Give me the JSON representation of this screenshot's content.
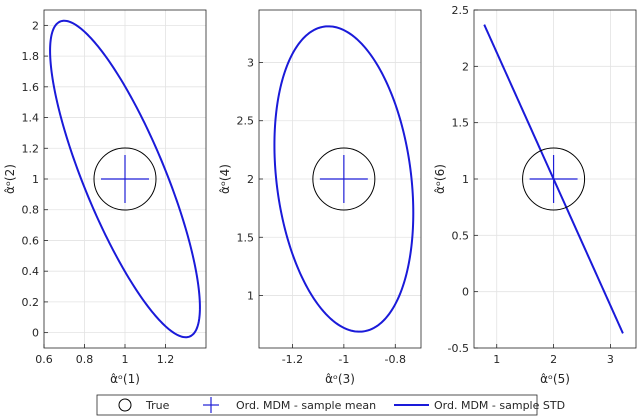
{
  "figure": {
    "colors": {
      "true_marker": "#000000",
      "mean_marker": "#1f1fd6",
      "std_ellipse": "#1a1ad9",
      "grid": "#e3e3e3",
      "axis": "#262626"
    }
  },
  "chart_data": [
    {
      "type": "scatter",
      "xlabel": "α̂ᵒ(1)",
      "ylabel": "α̂ᵒ(2)",
      "xlim": [
        0.6,
        1.4
      ],
      "ylim": [
        -0.1,
        2.1
      ],
      "xticks": [
        0.6,
        0.8,
        1,
        1.2
      ],
      "xtick_labels": [
        "0.6",
        "0.8",
        "1",
        "1.2"
      ],
      "yticks": [
        0,
        0.2,
        0.4,
        0.6,
        0.8,
        1,
        1.2,
        1.4,
        1.6,
        1.8,
        2
      ],
      "ytick_labels": [
        "0",
        "0.2",
        "0.4",
        "0.6",
        "0.8",
        "1",
        "1.2",
        "1.4",
        "1.6",
        "1.8",
        "2"
      ],
      "grid": true,
      "true_value": [
        1,
        1
      ],
      "sample_mean": [
        1,
        1
      ],
      "std_ellipse": {
        "center": [
          1,
          1
        ],
        "x_extent": [
          0.65,
          1.37
        ],
        "y_extent": [
          -0.03,
          2.03
        ],
        "top_point": [
          0.7,
          2.02
        ],
        "bottom_point": [
          1.3,
          -0.02
        ]
      }
    },
    {
      "type": "scatter",
      "xlabel": "α̂ᵒ(3)",
      "ylabel": "α̂ᵒ(4)",
      "xlim": [
        -1.33,
        -0.7
      ],
      "ylim": [
        0.55,
        3.45
      ],
      "xticks": [
        -1.2,
        -1,
        -0.8
      ],
      "xtick_labels": [
        "-1.2",
        "-1",
        "-0.8"
      ],
      "yticks": [
        1,
        1.5,
        2,
        2.5,
        3
      ],
      "ytick_labels": [
        "1",
        "1.5",
        "2",
        "2.5",
        "3"
      ],
      "grid": true,
      "true_value": [
        -1,
        2
      ],
      "sample_mean": [
        -1,
        2
      ],
      "std_ellipse": {
        "center": [
          -1,
          2
        ],
        "x_extent": [
          -1.27,
          -0.73
        ],
        "y_extent": [
          0.69,
          3.31
        ],
        "top_point": [
          -1.06,
          3.3
        ],
        "bottom_point": [
          -0.94,
          0.69
        ]
      }
    },
    {
      "type": "scatter",
      "xlabel": "α̂ᵒ(5)",
      "ylabel": "α̂ᵒ(6)",
      "xlim": [
        0.6,
        3.45
      ],
      "ylim": [
        -0.5,
        2.5
      ],
      "xticks": [
        1,
        2,
        3
      ],
      "xtick_labels": [
        "1",
        "2",
        "3"
      ],
      "yticks": [
        -0.5,
        0,
        0.5,
        1,
        1.5,
        2,
        2.5
      ],
      "ytick_labels": [
        "-0.5",
        "0",
        "0.5",
        "1",
        "1.5",
        "2",
        "2.5"
      ],
      "grid": true,
      "true_value": [
        2,
        1
      ],
      "sample_mean": [
        2,
        1
      ],
      "std_ellipse": {
        "center": [
          2,
          1
        ],
        "x_extent": [
          0.78,
          3.22
        ],
        "y_extent": [
          -0.37,
          2.37
        ],
        "top_point": [
          0.78,
          2.38
        ],
        "bottom_point": [
          3.22,
          -0.38
        ]
      }
    }
  ],
  "legend": {
    "placement": "bottom",
    "entries": [
      {
        "label": "True",
        "marker": "circle"
      },
      {
        "label": "Ord. MDM - sample mean",
        "marker": "plus"
      },
      {
        "label": "Ord. MDM - sample STD",
        "marker": "line"
      }
    ]
  }
}
